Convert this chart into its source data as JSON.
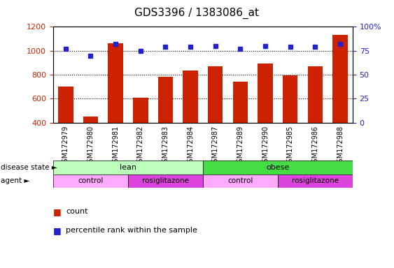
{
  "title": "GDS3396 / 1383086_at",
  "samples": [
    "GSM172979",
    "GSM172980",
    "GSM172981",
    "GSM172982",
    "GSM172983",
    "GSM172984",
    "GSM172987",
    "GSM172989",
    "GSM172990",
    "GSM172985",
    "GSM172986",
    "GSM172988"
  ],
  "counts": [
    700,
    452,
    1060,
    607,
    780,
    835,
    872,
    742,
    895,
    795,
    872,
    1130
  ],
  "percentile_ranks": [
    77,
    70,
    82,
    75,
    79,
    79,
    80,
    77,
    80,
    79,
    79,
    82
  ],
  "ylim_left": [
    400,
    1200
  ],
  "ylim_right": [
    0,
    100
  ],
  "yticks_left": [
    400,
    600,
    800,
    1000,
    1200
  ],
  "yticks_right": [
    0,
    25,
    50,
    75,
    100
  ],
  "bar_color": "#cc2200",
  "dot_color": "#2222cc",
  "disease_state": [
    {
      "label": "lean",
      "start": 0,
      "end": 6,
      "color": "#bbffbb"
    },
    {
      "label": "obese",
      "start": 6,
      "end": 12,
      "color": "#44dd44"
    }
  ],
  "agent": [
    {
      "label": "control",
      "start": 0,
      "end": 3,
      "color": "#ffaaff"
    },
    {
      "label": "rosiglitazone",
      "start": 3,
      "end": 6,
      "color": "#dd44dd"
    },
    {
      "label": "control",
      "start": 6,
      "end": 9,
      "color": "#ffaaff"
    },
    {
      "label": "rosiglitazone",
      "start": 9,
      "end": 12,
      "color": "#dd44dd"
    }
  ],
  "legend_count_color": "#cc2200",
  "legend_dot_color": "#2222cc",
  "background_color": "#ffffff",
  "plot_bg_color": "#ffffff",
  "tick_area_color": "#dddddd",
  "grid_color": "#000000",
  "title_fontsize": 11,
  "tick_label_fontsize": 7,
  "row_label_fontsize": 8,
  "legend_fontsize": 8
}
